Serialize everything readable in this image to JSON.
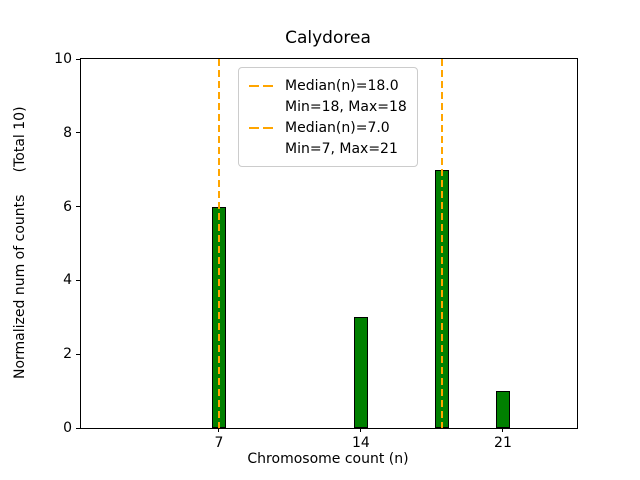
{
  "chart_data": {
    "type": "bar",
    "title": "Calydorea",
    "xlabel": "Chromosome count (n)",
    "ylabel": "Normalized num of counts     (Total 10)",
    "x": [
      7,
      14,
      18,
      21
    ],
    "values": [
      6,
      3,
      7,
      1
    ],
    "bar_color": "#008000",
    "bar_edge_color": "#000000",
    "bar_width": 0.7,
    "xlim": [
      0.2,
      24.65
    ],
    "ylim": [
      0,
      10
    ],
    "xticks": [
      7,
      14,
      21
    ],
    "yticks": [
      0,
      2,
      4,
      6,
      8,
      10
    ],
    "grid": false,
    "vlines": [
      {
        "x": 18,
        "color": "#FFA500",
        "style": "dashed"
      },
      {
        "x": 7,
        "color": "#FFA500",
        "style": "dashed"
      }
    ],
    "legend": {
      "position": "upper center",
      "entries": [
        {
          "label": "Median(n)=18.0",
          "sublabel": "Min=18, Max=18",
          "color": "#FFA500",
          "style": "dashed"
        },
        {
          "label": "Median(n)=7.0",
          "sublabel": "Min=7, Max=21",
          "color": "#FFA500",
          "style": "dashed"
        }
      ]
    }
  }
}
